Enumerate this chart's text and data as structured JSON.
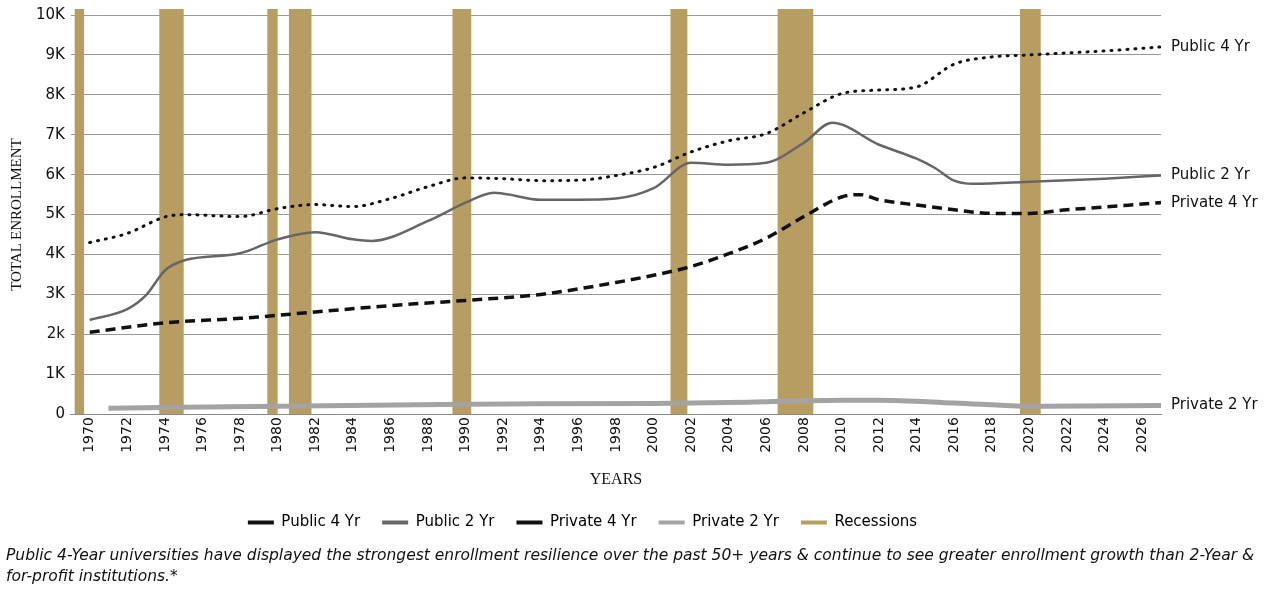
{
  "chart_data": {
    "type": "line",
    "xlabel": "YEARS",
    "ylabel": "TOTAL ENROLLMENT",
    "xlim": [
      1969,
      2027
    ],
    "xticks": [
      1970,
      1972,
      1974,
      1976,
      1978,
      1980,
      1982,
      1984,
      1986,
      1988,
      1990,
      1992,
      1994,
      1996,
      1998,
      2000,
      2002,
      2004,
      2006,
      2008,
      2010,
      2012,
      2014,
      2016,
      2018,
      2020,
      2022,
      2024,
      2026
    ],
    "ylim": [
      0,
      10000
    ],
    "yticks": [
      0,
      {
        "value": 1000,
        "label": "1K"
      },
      {
        "value": 2000,
        "label": "2k"
      },
      {
        "value": 3000,
        "label": "3K"
      },
      {
        "value": 4000,
        "label": "4K"
      },
      {
        "value": 5000,
        "label": "5K"
      },
      {
        "value": 6000,
        "label": "6K"
      },
      {
        "value": 7000,
        "label": "7K"
      },
      {
        "value": 8000,
        "label": "8K"
      },
      {
        "value": 9000,
        "label": "9K"
      },
      {
        "value": 10000,
        "label": "10K"
      }
    ],
    "grid": "y",
    "legend": "bottom",
    "marker": "none",
    "series": [
      {
        "name": "Public 4 Yr",
        "color": "#111111",
        "line_style": "dotted",
        "x": [
          1970,
          1972,
          1974,
          1975,
          1978,
          1980,
          1982,
          1984,
          1986,
          1988,
          1990,
          1992,
          1994,
          1996,
          1998,
          2000,
          2002,
          2004,
          2006,
          2008,
          2010,
          2012,
          2014,
          2016,
          2018,
          2020,
          2022,
          2024,
          2027
        ],
        "values": [
          4300,
          4530,
          4940,
          5000,
          4950,
          5150,
          5250,
          5200,
          5400,
          5700,
          5920,
          5900,
          5850,
          5860,
          5980,
          6180,
          6570,
          6850,
          7030,
          7550,
          8030,
          8120,
          8200,
          8770,
          8950,
          9000,
          9050,
          9100,
          9200
        ]
      },
      {
        "name": "Public 2 Yr",
        "color": "#666666",
        "line_style": "solid",
        "x": [
          1970,
          1972,
          1973,
          1974,
          1975,
          1978,
          1980,
          1982,
          1984,
          1985,
          1988,
          1990,
          1991.5,
          1994,
          1996,
          1998,
          2000,
          2002,
          2004,
          2006,
          2008,
          2009.5,
          2012,
          2014,
          2015,
          2016,
          2017,
          2020,
          2024,
          2027
        ],
        "values": [
          2360,
          2630,
          2980,
          3600,
          3850,
          4030,
          4380,
          4560,
          4380,
          4340,
          4840,
          5300,
          5550,
          5370,
          5370,
          5400,
          5660,
          6300,
          6250,
          6300,
          6800,
          7300,
          6750,
          6400,
          6160,
          5850,
          5770,
          5820,
          5900,
          5980
        ]
      },
      {
        "name": "Private 4 Yr",
        "color": "#111111",
        "line_style": "dashed",
        "x": [
          1970,
          1974,
          1978,
          1982,
          1986,
          1990,
          1994,
          1998,
          2000,
          2002,
          2004,
          2006,
          2008,
          2010,
          2011,
          2012,
          2014,
          2016,
          2018,
          2020,
          2022,
          2024,
          2027
        ],
        "values": [
          2050,
          2290,
          2400,
          2560,
          2720,
          2850,
          3000,
          3300,
          3480,
          3700,
          4020,
          4410,
          4950,
          5440,
          5500,
          5370,
          5240,
          5120,
          5030,
          5030,
          5120,
          5190,
          5300
        ]
      },
      {
        "name": "Private 2 Yr",
        "color": "#a3a3a3",
        "line_style": "solid",
        "x": [
          1971,
          1980,
          1990,
          2000,
          2005,
          2010,
          2012,
          2016,
          2020,
          2027
        ],
        "values": [
          150,
          200,
          250,
          270,
          300,
          350,
          350,
          280,
          200,
          220
        ]
      }
    ],
    "bands": [
      {
        "axis": "x",
        "from": 1969.2,
        "to": 1969.7,
        "label": "Recessions",
        "color": "#b89d62"
      },
      {
        "axis": "x",
        "from": 1973.7,
        "to": 1975.0,
        "color": "#b89d62"
      },
      {
        "axis": "x",
        "from": 1979.45,
        "to": 1980.0,
        "color": "#b89d62"
      },
      {
        "axis": "x",
        "from": 1980.6,
        "to": 1981.8,
        "color": "#b89d62"
      },
      {
        "axis": "x",
        "from": 1989.3,
        "to": 1990.3,
        "color": "#b89d62"
      },
      {
        "axis": "x",
        "from": 2000.9,
        "to": 2001.8,
        "color": "#b89d62"
      },
      {
        "axis": "x",
        "from": 2006.6,
        "to": 2008.5,
        "color": "#b89d62"
      },
      {
        "axis": "x",
        "from": 2019.5,
        "to": 2020.6,
        "color": "#b89d62"
      }
    ],
    "annotations": [
      "Public 4-Year universities have displayed the strongest enrollment resilience over the past 50+ years & continue to see greater enrollment growth than 2-Year & for-profit institutions.*"
    ]
  }
}
